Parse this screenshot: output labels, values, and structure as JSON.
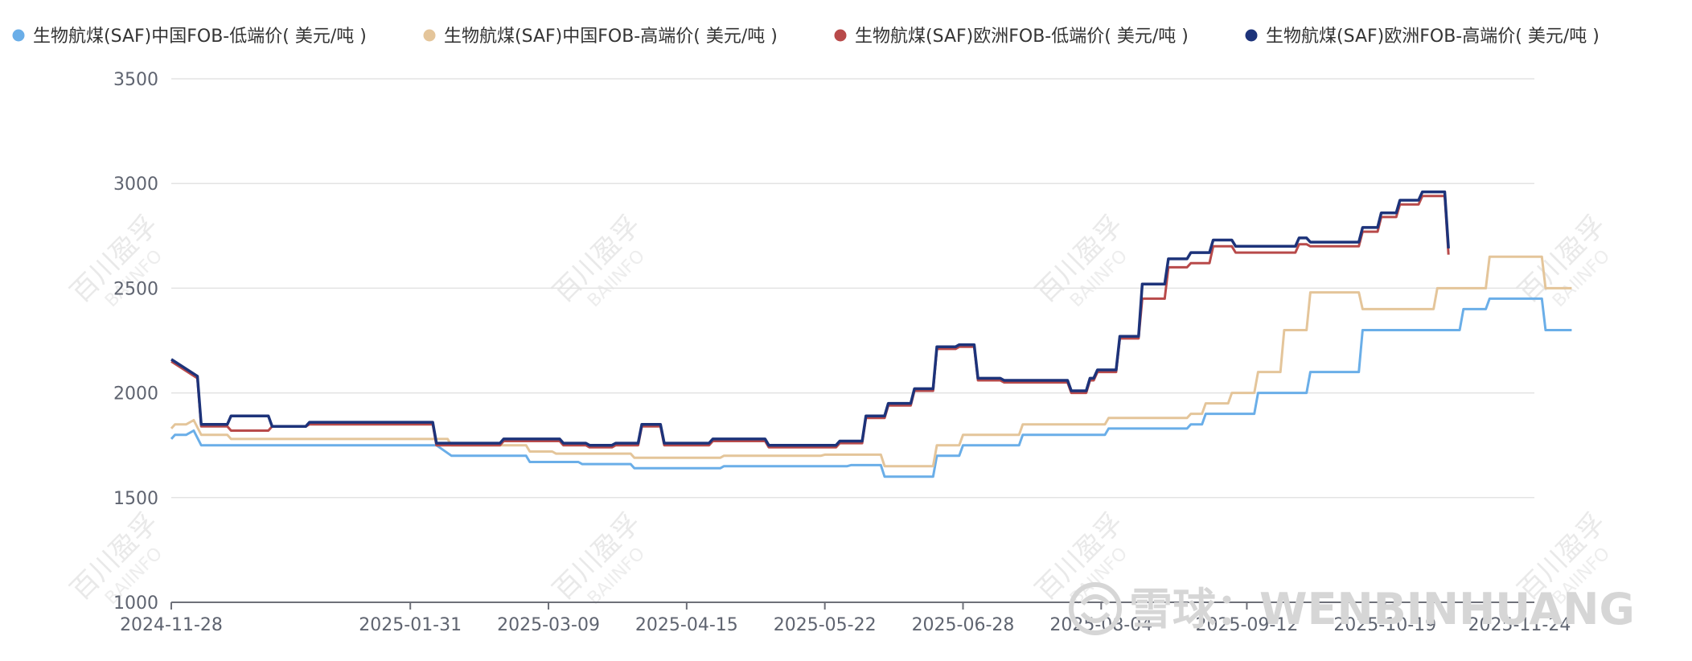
{
  "chart_data": {
    "type": "line",
    "title": "",
    "xlabel": "",
    "ylabel": "",
    "ylim": [
      1000,
      3500
    ],
    "yticks": [
      1000,
      1500,
      2000,
      2500,
      3000,
      3500
    ],
    "x_range": [
      "2024-11-28",
      "2025-11-28"
    ],
    "xticks": [
      "2024-11-28",
      "2025-01-31",
      "2025-03-09",
      "2025-04-15",
      "2025-05-22",
      "2025-06-28",
      "2025-08-04",
      "2025-09-12",
      "2025-10-19",
      "2025-11-24"
    ],
    "grid": true,
    "legend_position": "top",
    "series": [
      {
        "name": "生物航煤(SAF)中国FOB-低端价( 美元/吨 )",
        "color": "#6aaee8",
        "points": [
          [
            "2024-11-28",
            1780
          ],
          [
            "2024-11-29",
            1800
          ],
          [
            "2024-12-02",
            1800
          ],
          [
            "2024-12-04",
            1820
          ],
          [
            "2024-12-06",
            1750
          ],
          [
            "2025-02-07",
            1750
          ],
          [
            "2025-02-11",
            1700
          ],
          [
            "2025-03-03",
            1700
          ],
          [
            "2025-03-04",
            1670
          ],
          [
            "2025-03-17",
            1670
          ],
          [
            "2025-03-18",
            1660
          ],
          [
            "2025-03-31",
            1660
          ],
          [
            "2025-04-01",
            1640
          ],
          [
            "2025-04-24",
            1640
          ],
          [
            "2025-04-25",
            1650
          ],
          [
            "2025-05-28",
            1650
          ],
          [
            "2025-05-29",
            1655
          ],
          [
            "2025-06-06",
            1655
          ],
          [
            "2025-06-07",
            1600
          ],
          [
            "2025-06-20",
            1600
          ],
          [
            "2025-06-21",
            1700
          ],
          [
            "2025-06-27",
            1700
          ],
          [
            "2025-06-28",
            1750
          ],
          [
            "2025-07-13",
            1750
          ],
          [
            "2025-07-14",
            1800
          ],
          [
            "2025-08-05",
            1800
          ],
          [
            "2025-08-06",
            1830
          ],
          [
            "2025-08-27",
            1830
          ],
          [
            "2025-08-28",
            1850
          ],
          [
            "2025-08-31",
            1850
          ],
          [
            "2025-09-01",
            1900
          ],
          [
            "2025-09-14",
            1900
          ],
          [
            "2025-09-15",
            2000
          ],
          [
            "2025-09-28",
            2000
          ],
          [
            "2025-09-29",
            2100
          ],
          [
            "2025-10-12",
            2100
          ],
          [
            "2025-10-13",
            2300
          ],
          [
            "2025-11-08",
            2300
          ],
          [
            "2025-11-09",
            2400
          ],
          [
            "2025-11-15",
            2400
          ],
          [
            "2025-11-16",
            2450
          ],
          [
            "2025-11-30",
            2450
          ],
          [
            "2025-12-01",
            2300
          ],
          [
            "2025-12-08",
            2300
          ]
        ]
      },
      {
        "name": "生物航煤(SAF)中国FOB-高端价( 美元/吨 )",
        "color": "#e4c59a",
        "points": [
          [
            "2024-11-28",
            1830
          ],
          [
            "2024-11-29",
            1850
          ],
          [
            "2024-12-02",
            1850
          ],
          [
            "2024-12-04",
            1870
          ],
          [
            "2024-12-06",
            1800
          ],
          [
            "2024-12-13",
            1800
          ],
          [
            "2024-12-14",
            1780
          ],
          [
            "2025-02-10",
            1780
          ],
          [
            "2025-02-11",
            1750
          ],
          [
            "2025-03-03",
            1750
          ],
          [
            "2025-03-04",
            1720
          ],
          [
            "2025-03-10",
            1720
          ],
          [
            "2025-03-11",
            1710
          ],
          [
            "2025-03-31",
            1710
          ],
          [
            "2025-04-01",
            1690
          ],
          [
            "2025-04-24",
            1690
          ],
          [
            "2025-04-25",
            1700
          ],
          [
            "2025-05-21",
            1700
          ],
          [
            "2025-05-22",
            1705
          ],
          [
            "2025-06-06",
            1705
          ],
          [
            "2025-06-07",
            1650
          ],
          [
            "2025-06-20",
            1650
          ],
          [
            "2025-06-21",
            1750
          ],
          [
            "2025-06-27",
            1750
          ],
          [
            "2025-06-28",
            1800
          ],
          [
            "2025-07-13",
            1800
          ],
          [
            "2025-07-14",
            1850
          ],
          [
            "2025-08-05",
            1850
          ],
          [
            "2025-08-06",
            1880
          ],
          [
            "2025-08-27",
            1880
          ],
          [
            "2025-08-28",
            1900
          ],
          [
            "2025-08-31",
            1900
          ],
          [
            "2025-09-01",
            1950
          ],
          [
            "2025-09-07",
            1950
          ],
          [
            "2025-09-08",
            2000
          ],
          [
            "2025-09-14",
            2000
          ],
          [
            "2025-09-15",
            2100
          ],
          [
            "2025-09-21",
            2100
          ],
          [
            "2025-09-22",
            2300
          ],
          [
            "2025-09-28",
            2300
          ],
          [
            "2025-09-29",
            2480
          ],
          [
            "2025-10-12",
            2480
          ],
          [
            "2025-10-13",
            2400
          ],
          [
            "2025-11-01",
            2400
          ],
          [
            "2025-11-02",
            2500
          ],
          [
            "2025-11-15",
            2500
          ],
          [
            "2025-11-16",
            2650
          ],
          [
            "2025-11-30",
            2650
          ],
          [
            "2025-12-01",
            2500
          ],
          [
            "2025-12-08",
            2500
          ]
        ]
      },
      {
        "name": "生物航煤(SAF)欧洲FOB-低端价( 美元/吨 )",
        "color": "#b84a4a",
        "points": [
          [
            "2024-11-28",
            2150
          ],
          [
            "2024-12-05",
            2070
          ],
          [
            "2024-12-06",
            1840
          ],
          [
            "2024-12-13",
            1840
          ],
          [
            "2024-12-14",
            1820
          ],
          [
            "2024-12-24",
            1820
          ],
          [
            "2024-12-25",
            1840
          ],
          [
            "2025-01-03",
            1840
          ],
          [
            "2025-01-04",
            1850
          ],
          [
            "2025-02-06",
            1850
          ],
          [
            "2025-02-07",
            1750
          ],
          [
            "2025-02-24",
            1750
          ],
          [
            "2025-02-25",
            1770
          ],
          [
            "2025-03-12",
            1770
          ],
          [
            "2025-03-13",
            1750
          ],
          [
            "2025-03-19",
            1750
          ],
          [
            "2025-03-20",
            1740
          ],
          [
            "2025-03-26",
            1740
          ],
          [
            "2025-03-27",
            1750
          ],
          [
            "2025-04-02",
            1750
          ],
          [
            "2025-04-03",
            1840
          ],
          [
            "2025-04-08",
            1840
          ],
          [
            "2025-04-09",
            1750
          ],
          [
            "2025-04-21",
            1750
          ],
          [
            "2025-04-22",
            1770
          ],
          [
            "2025-05-06",
            1770
          ],
          [
            "2025-05-07",
            1740
          ],
          [
            "2025-05-25",
            1740
          ],
          [
            "2025-05-26",
            1760
          ],
          [
            "2025-06-01",
            1760
          ],
          [
            "2025-06-02",
            1880
          ],
          [
            "2025-06-07",
            1880
          ],
          [
            "2025-06-08",
            1940
          ],
          [
            "2025-06-14",
            1940
          ],
          [
            "2025-06-15",
            2010
          ],
          [
            "2025-06-20",
            2010
          ],
          [
            "2025-06-21",
            2210
          ],
          [
            "2025-06-26",
            2210
          ],
          [
            "2025-06-27",
            2220
          ],
          [
            "2025-07-01",
            2220
          ],
          [
            "2025-07-02",
            2060
          ],
          [
            "2025-07-08",
            2060
          ],
          [
            "2025-07-09",
            2050
          ],
          [
            "2025-07-26",
            2050
          ],
          [
            "2025-07-27",
            2000
          ],
          [
            "2025-07-31",
            2000
          ],
          [
            "2025-08-01",
            2060
          ],
          [
            "2025-08-02",
            2060
          ],
          [
            "2025-08-03",
            2100
          ],
          [
            "2025-08-08",
            2100
          ],
          [
            "2025-08-09",
            2260
          ],
          [
            "2025-08-14",
            2260
          ],
          [
            "2025-08-15",
            2450
          ],
          [
            "2025-08-21",
            2450
          ],
          [
            "2025-08-22",
            2600
          ],
          [
            "2025-08-27",
            2600
          ],
          [
            "2025-08-28",
            2620
          ],
          [
            "2025-09-02",
            2620
          ],
          [
            "2025-09-03",
            2700
          ],
          [
            "2025-09-08",
            2700
          ],
          [
            "2025-09-09",
            2670
          ],
          [
            "2025-09-25",
            2670
          ],
          [
            "2025-09-26",
            2710
          ],
          [
            "2025-09-28",
            2710
          ],
          [
            "2025-09-29",
            2700
          ],
          [
            "2025-10-12",
            2700
          ],
          [
            "2025-10-13",
            2770
          ],
          [
            "2025-10-17",
            2770
          ],
          [
            "2025-10-18",
            2840
          ],
          [
            "2025-10-22",
            2840
          ],
          [
            "2025-10-23",
            2900
          ],
          [
            "2025-10-28",
            2900
          ],
          [
            "2025-10-29",
            2940
          ],
          [
            "2025-11-04",
            2940
          ],
          [
            "2025-11-05",
            2660
          ]
        ]
      },
      {
        "name": "生物航煤(SAF)欧洲FOB-高端价( 美元/吨 )",
        "color": "#1d337a",
        "points": [
          [
            "2024-11-28",
            2160
          ],
          [
            "2024-12-05",
            2080
          ],
          [
            "2024-12-06",
            1850
          ],
          [
            "2024-12-13",
            1850
          ],
          [
            "2024-12-14",
            1890
          ],
          [
            "2024-12-24",
            1890
          ],
          [
            "2024-12-25",
            1840
          ],
          [
            "2025-01-03",
            1840
          ],
          [
            "2025-01-04",
            1860
          ],
          [
            "2025-02-06",
            1860
          ],
          [
            "2025-02-07",
            1760
          ],
          [
            "2025-02-24",
            1760
          ],
          [
            "2025-02-25",
            1780
          ],
          [
            "2025-03-12",
            1780
          ],
          [
            "2025-03-13",
            1760
          ],
          [
            "2025-03-19",
            1760
          ],
          [
            "2025-03-20",
            1750
          ],
          [
            "2025-03-26",
            1750
          ],
          [
            "2025-03-27",
            1760
          ],
          [
            "2025-04-02",
            1760
          ],
          [
            "2025-04-03",
            1850
          ],
          [
            "2025-04-08",
            1850
          ],
          [
            "2025-04-09",
            1760
          ],
          [
            "2025-04-21",
            1760
          ],
          [
            "2025-04-22",
            1780
          ],
          [
            "2025-05-06",
            1780
          ],
          [
            "2025-05-07",
            1750
          ],
          [
            "2025-05-25",
            1750
          ],
          [
            "2025-05-26",
            1770
          ],
          [
            "2025-06-01",
            1770
          ],
          [
            "2025-06-02",
            1890
          ],
          [
            "2025-06-07",
            1890
          ],
          [
            "2025-06-08",
            1950
          ],
          [
            "2025-06-14",
            1950
          ],
          [
            "2025-06-15",
            2020
          ],
          [
            "2025-06-20",
            2020
          ],
          [
            "2025-06-21",
            2220
          ],
          [
            "2025-06-26",
            2220
          ],
          [
            "2025-06-27",
            2230
          ],
          [
            "2025-07-01",
            2230
          ],
          [
            "2025-07-02",
            2070
          ],
          [
            "2025-07-08",
            2070
          ],
          [
            "2025-07-09",
            2060
          ],
          [
            "2025-07-26",
            2060
          ],
          [
            "2025-07-27",
            2010
          ],
          [
            "2025-07-31",
            2010
          ],
          [
            "2025-08-01",
            2070
          ],
          [
            "2025-08-02",
            2070
          ],
          [
            "2025-08-03",
            2110
          ],
          [
            "2025-08-08",
            2110
          ],
          [
            "2025-08-09",
            2270
          ],
          [
            "2025-08-14",
            2270
          ],
          [
            "2025-08-15",
            2520
          ],
          [
            "2025-08-21",
            2520
          ],
          [
            "2025-08-22",
            2640
          ],
          [
            "2025-08-27",
            2640
          ],
          [
            "2025-08-28",
            2670
          ],
          [
            "2025-09-02",
            2670
          ],
          [
            "2025-09-03",
            2730
          ],
          [
            "2025-09-08",
            2730
          ],
          [
            "2025-09-09",
            2700
          ],
          [
            "2025-09-25",
            2700
          ],
          [
            "2025-09-26",
            2740
          ],
          [
            "2025-09-28",
            2740
          ],
          [
            "2025-09-29",
            2720
          ],
          [
            "2025-10-12",
            2720
          ],
          [
            "2025-10-13",
            2790
          ],
          [
            "2025-10-17",
            2790
          ],
          [
            "2025-10-18",
            2860
          ],
          [
            "2025-10-22",
            2860
          ],
          [
            "2025-10-23",
            2920
          ],
          [
            "2025-10-28",
            2920
          ],
          [
            "2025-10-29",
            2960
          ],
          [
            "2025-11-04",
            2960
          ],
          [
            "2025-11-05",
            2690
          ]
        ]
      }
    ]
  },
  "watermarks": {
    "brand": "百川盈孚",
    "brand_en": "BAIINFO",
    "author_prefix": "雪球：",
    "author": "WENBINHUANG"
  },
  "icons": {
    "legend_marker": "circle",
    "author_logo": "snowball-logo-icon"
  }
}
